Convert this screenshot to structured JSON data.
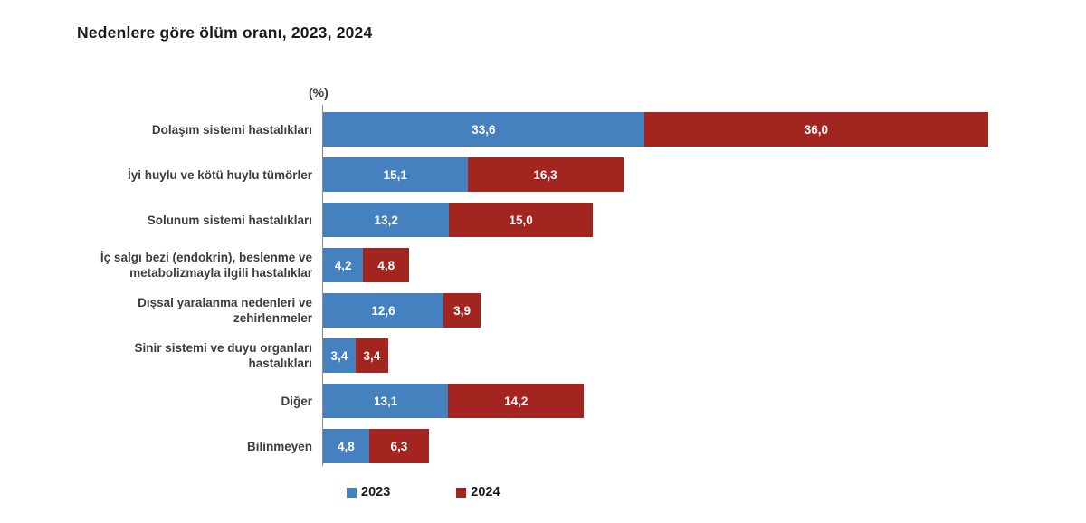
{
  "title": "Nedenlere göre ölüm oranı, 2023, 2024",
  "axis_unit_label": "(%)",
  "colors": {
    "series_2023": "#4580bf",
    "series_2024": "#a3251f",
    "axis_line": "#8c8c8c",
    "value_text": "#ffffff",
    "category_text": "#3d3d3d"
  },
  "legend": {
    "items": [
      {
        "label": "2023",
        "color": "#4580bf"
      },
      {
        "label": "2024",
        "color": "#a3251f"
      }
    ]
  },
  "chart_data": {
    "type": "bar",
    "orientation": "horizontal",
    "stacked": true,
    "title": "Nedenlere göre ölüm oranı, 2023, 2024",
    "unit": "%",
    "xlabel": "(%)",
    "ylabel": "",
    "xlim": [
      0,
      70
    ],
    "grid": false,
    "legend_position": "bottom",
    "categories": [
      "Dolaşım sistemi hastalıkları",
      "İyi huylu ve kötü huylu tümörler",
      "Solunum sistemi hastalıkları",
      "İç salgı bezi (endokrin), beslenme ve metabolizmayla ilgili hastalıklar",
      "Dışsal yaralanma nedenleri ve zehirlenmeler",
      "Sinir sistemi ve duyu organları hastalıkları",
      "Diğer",
      "Bilinmeyen"
    ],
    "series": [
      {
        "name": "2023",
        "color": "#4580bf",
        "values": [
          33.6,
          15.1,
          13.2,
          4.2,
          12.6,
          3.4,
          13.1,
          4.8
        ],
        "value_labels": [
          "33,6",
          "15,1",
          "13,2",
          "4,2",
          "12,6",
          "3,4",
          "13,1",
          "4,8"
        ]
      },
      {
        "name": "2024",
        "color": "#a3251f",
        "values": [
          36.0,
          16.3,
          15.0,
          4.8,
          3.9,
          3.4,
          14.2,
          6.3
        ],
        "value_labels": [
          "36,0",
          "16,3",
          "15,0",
          "4,8",
          "3,9",
          "3,4",
          "14,2",
          "6,3"
        ]
      }
    ]
  }
}
